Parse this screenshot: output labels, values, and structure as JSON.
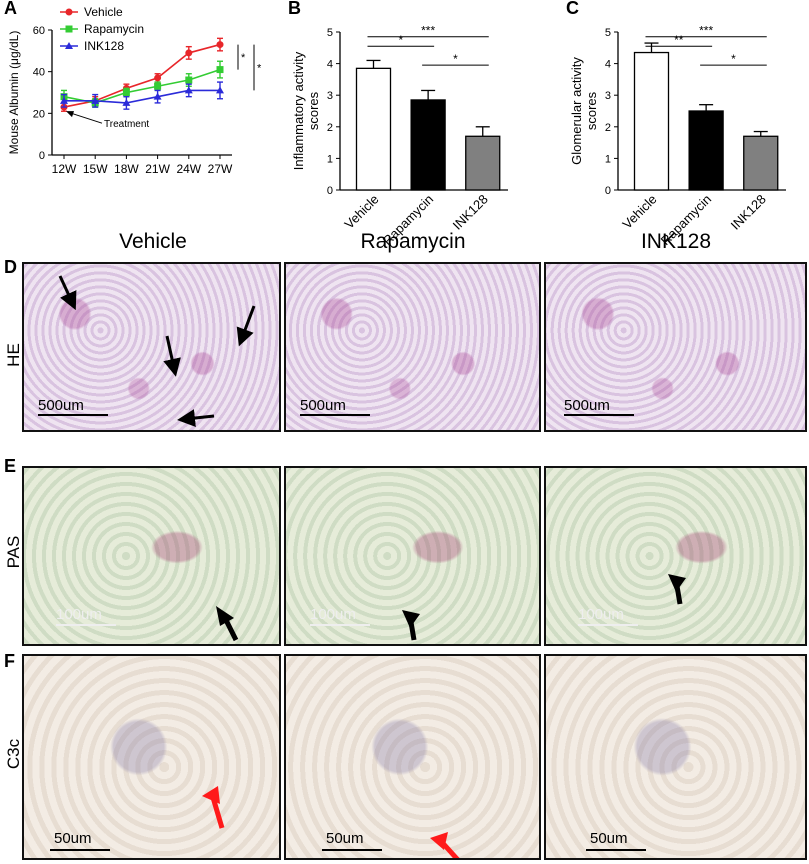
{
  "panel_labels": {
    "a": "A",
    "b": "B",
    "c": "C",
    "d": "D",
    "e": "E",
    "f": "F"
  },
  "column_headers": [
    "Vehicle",
    "Rapamycin",
    "INK128"
  ],
  "row_labels": {
    "d": "HE",
    "e": "PAS",
    "f": "C3c"
  },
  "scale_labels": {
    "d": "500um",
    "e": "100um",
    "f": "50um"
  },
  "colors": {
    "vehicle": "#e8262a",
    "rapamycin": "#33cc33",
    "ink128": "#2b2bd9",
    "black_bar": "#000000",
    "gray_bar": "#808080",
    "white_bar": "#ffffff",
    "arrow_red": "#ff1a1a"
  },
  "chart_data": [
    {
      "type": "line",
      "panel": "A",
      "xlabel": "",
      "ylabel": "Mouse Albumin (μg/dL)",
      "categories": [
        "12W",
        "15W",
        "18W",
        "21W",
        "24W",
        "27W"
      ],
      "ylim": [
        0,
        60
      ],
      "yticks": [
        0,
        20,
        40,
        60
      ],
      "legend_position": "top-left",
      "annotation": "Treatment",
      "significance": [
        "*",
        "*"
      ],
      "series": [
        {
          "name": "Vehicle",
          "color": "#e8262a",
          "marker": "circle",
          "values": [
            23,
            26,
            32,
            37,
            49,
            53
          ],
          "errors": [
            2,
            2,
            2,
            2,
            3,
            3
          ]
        },
        {
          "name": "Rapamycin",
          "color": "#33cc33",
          "marker": "square",
          "values": [
            28,
            25,
            30,
            33,
            36,
            41
          ],
          "errors": [
            3,
            2,
            2,
            2,
            3,
            4
          ]
        },
        {
          "name": "INK128",
          "color": "#2b2bd9",
          "marker": "triangle",
          "values": [
            26,
            26,
            25,
            28,
            31,
            31
          ],
          "errors": [
            3,
            3,
            3,
            3,
            3,
            4
          ]
        }
      ]
    },
    {
      "type": "bar",
      "panel": "B",
      "ylabel": "Inflammatory activity scores",
      "categories": [
        "Vehicle",
        "Rapamycin",
        "INK128"
      ],
      "values": [
        3.85,
        2.85,
        1.7
      ],
      "errors": [
        0.25,
        0.3,
        0.3
      ],
      "ylim": [
        0,
        5
      ],
      "yticks": [
        0,
        1,
        2,
        3,
        4,
        5
      ],
      "significance": [
        {
          "from": 0,
          "to": 1,
          "label": "*"
        },
        {
          "from": 0,
          "to": 2,
          "label": "***"
        },
        {
          "from": 1,
          "to": 2,
          "label": "*"
        }
      ]
    },
    {
      "type": "bar",
      "panel": "C",
      "ylabel": "Glomerular activity scores",
      "categories": [
        "Vehicle",
        "Rapamycin",
        "INK128"
      ],
      "values": [
        4.35,
        2.5,
        1.7
      ],
      "errors": [
        0.3,
        0.2,
        0.15
      ],
      "ylim": [
        0,
        5
      ],
      "yticks": [
        0,
        1,
        2,
        3,
        4,
        5
      ],
      "significance": [
        {
          "from": 0,
          "to": 1,
          "label": "**"
        },
        {
          "from": 0,
          "to": 2,
          "label": "***"
        },
        {
          "from": 1,
          "to": 2,
          "label": "*"
        }
      ]
    }
  ]
}
